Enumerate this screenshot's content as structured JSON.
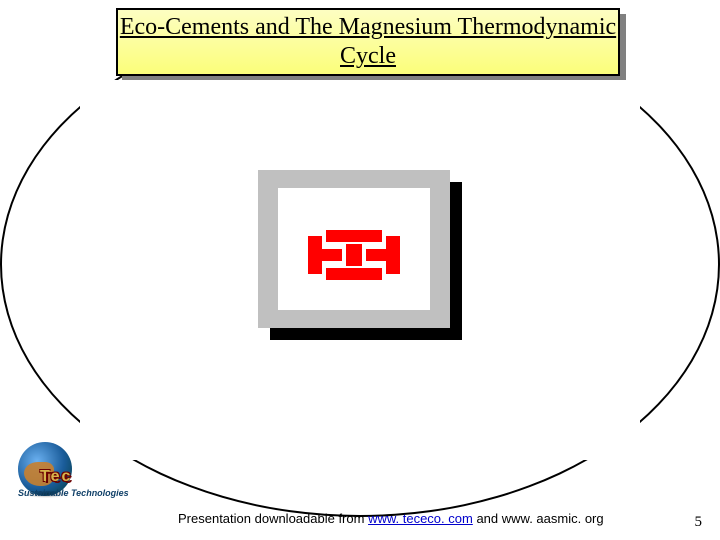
{
  "title": "Eco-Cements and The Magnesium Thermodynamic Cycle",
  "footer": {
    "prefix": "Presentation downloadable from ",
    "link_text": "www. tececo. com",
    "suffix": " and www. aasmic. org"
  },
  "banner_text": "Sustainable Technologies",
  "tec_badge": "Tec",
  "page_number": "5",
  "colors": {
    "title_gradient_top": "#fdfec2",
    "title_gradient_bottom": "#fbfe7a",
    "ellipse_border": "#000000",
    "broken_icon_red": "#ff0000",
    "broken_icon_gray": "#c0c0c0",
    "link_color": "#0000cc",
    "banner_color": "#104068"
  },
  "broken_image": {
    "type": "placeholder",
    "description": "broken-embedded-object-icon"
  }
}
